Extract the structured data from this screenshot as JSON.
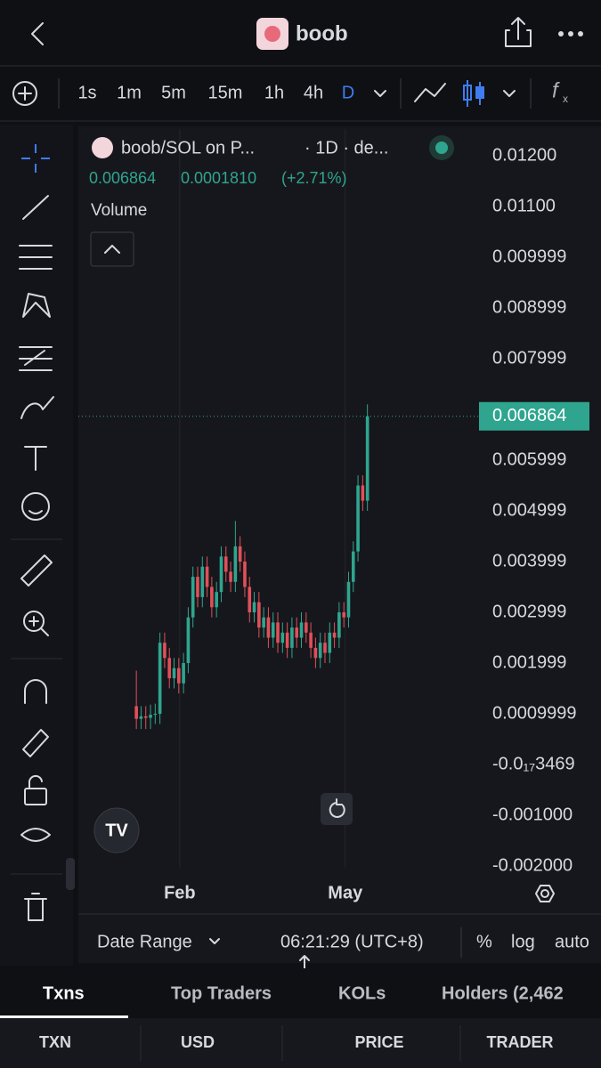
{
  "header": {
    "title": "boob"
  },
  "toolbar": {
    "intervals": [
      "1s",
      "1m",
      "5m",
      "15m",
      "1h",
      "4h",
      "D"
    ]
  },
  "chart_data": {
    "type": "candlestick",
    "title": "boob/SOL on P...",
    "subtitle": "· 1D · de...",
    "quote": {
      "change": "0.0001810",
      "change_pct": "(+2.71%)"
    },
    "volume_label": "Volume",
    "last_price": {
      "value": 0.006864,
      "label": "0.006864"
    },
    "up_color": "#2fa58f",
    "down_color": "#e0505a",
    "open": [
      0.00115,
      0.0009,
      0.00095,
      0.00092,
      0.00098,
      0.001,
      0.0024,
      0.0021,
      0.0017,
      0.0019,
      0.0016,
      0.002,
      0.0029,
      0.0037,
      0.0033,
      0.0039,
      0.0035,
      0.0031,
      0.0034,
      0.0041,
      0.0038,
      0.0036,
      0.0043,
      0.004,
      0.0035,
      0.003,
      0.0032,
      0.0027,
      0.0029,
      0.0025,
      0.0028,
      0.0024,
      0.0026,
      0.0023,
      0.0027,
      0.0025,
      0.0028,
      0.0026,
      0.0023,
      0.0021,
      0.0024,
      0.0022,
      0.0026,
      0.0025,
      0.003,
      0.0029,
      0.0036,
      0.0042,
      0.0055,
      0.0052
    ],
    "high": [
      0.00185,
      0.00115,
      0.00115,
      0.00118,
      0.0012,
      0.0026,
      0.0026,
      0.0023,
      0.0021,
      0.0021,
      0.0022,
      0.0031,
      0.0039,
      0.0039,
      0.0041,
      0.0041,
      0.0037,
      0.0036,
      0.0043,
      0.0043,
      0.004,
      0.0048,
      0.0045,
      0.0042,
      0.0037,
      0.0034,
      0.0034,
      0.0031,
      0.0031,
      0.003,
      0.003,
      0.0028,
      0.0028,
      0.0029,
      0.0029,
      0.003,
      0.003,
      0.0028,
      0.0025,
      0.0026,
      0.0026,
      0.0028,
      0.0028,
      0.0032,
      0.0032,
      0.0038,
      0.0044,
      0.0057,
      0.0057,
      0.0071
    ],
    "low": [
      0.0007,
      0.0007,
      0.0007,
      0.0007,
      0.0008,
      0.0008,
      0.0019,
      0.0015,
      0.0015,
      0.0014,
      0.0014,
      0.0018,
      0.0027,
      0.0031,
      0.0031,
      0.0033,
      0.0029,
      0.0029,
      0.0032,
      0.0036,
      0.0034,
      0.0034,
      0.0038,
      0.0033,
      0.0028,
      0.0028,
      0.0025,
      0.0025,
      0.0023,
      0.0023,
      0.0022,
      0.0022,
      0.0021,
      0.0021,
      0.0023,
      0.0023,
      0.0024,
      0.0021,
      0.0019,
      0.0019,
      0.002,
      0.002,
      0.0023,
      0.0023,
      0.0027,
      0.0027,
      0.0034,
      0.004,
      0.005,
      0.005
    ],
    "close": [
      0.0009,
      0.00095,
      0.00092,
      0.00098,
      0.001,
      0.0024,
      0.0021,
      0.0017,
      0.0019,
      0.0016,
      0.002,
      0.0029,
      0.0037,
      0.0033,
      0.0039,
      0.0035,
      0.0031,
      0.0034,
      0.0041,
      0.0038,
      0.0036,
      0.0043,
      0.004,
      0.0035,
      0.003,
      0.0032,
      0.0027,
      0.0029,
      0.0025,
      0.0028,
      0.0024,
      0.0026,
      0.0023,
      0.0027,
      0.0025,
      0.0028,
      0.0026,
      0.0023,
      0.0021,
      0.0024,
      0.0022,
      0.0026,
      0.0025,
      0.003,
      0.0029,
      0.0036,
      0.0042,
      0.0055,
      0.0052,
      0.006864
    ],
    "xlim": [
      -12.3,
      72.1
    ],
    "xticks": [
      {
        "value": 9.2,
        "label": "Feb"
      },
      {
        "value": 44.3,
        "label": "May"
      }
    ],
    "ylim": [
      -0.002035,
      0.012526
    ],
    "yticks": [
      {
        "value": 0.012,
        "label": "0.01200"
      },
      {
        "value": 0.011,
        "label": "0.01100"
      },
      {
        "value": 0.01,
        "label": "0.009999"
      },
      {
        "value": 0.009,
        "label": "0.008999"
      },
      {
        "value": 0.008,
        "label": "0.007999"
      },
      {
        "value": 0.006,
        "label": "0.005999"
      },
      {
        "value": 0.005,
        "label": "0.004999"
      },
      {
        "value": 0.004,
        "label": "0.003999"
      },
      {
        "value": 0.003,
        "label": "0.002999"
      },
      {
        "value": 0.002,
        "label": "0.001999"
      },
      {
        "value": 0.001,
        "label": "0.0009999"
      },
      {
        "value": -3.469e-18,
        "label": "-0.0₁₇3469"
      },
      {
        "value": -0.001,
        "label": "-0.001000"
      },
      {
        "value": -0.002,
        "label": "-0.002000"
      }
    ],
    "grid": "vertical"
  },
  "chart_footer": {
    "date_range": "Date Range",
    "time": "06:21:29 (UTC+8)",
    "percent": "%",
    "log": "log",
    "auto": "auto"
  },
  "tabs": [
    "Txns",
    "Top Traders",
    "KOLs",
    "Holders (2,462"
  ],
  "columns": [
    "TXN",
    "USD",
    "PRICE",
    "TRADER"
  ]
}
